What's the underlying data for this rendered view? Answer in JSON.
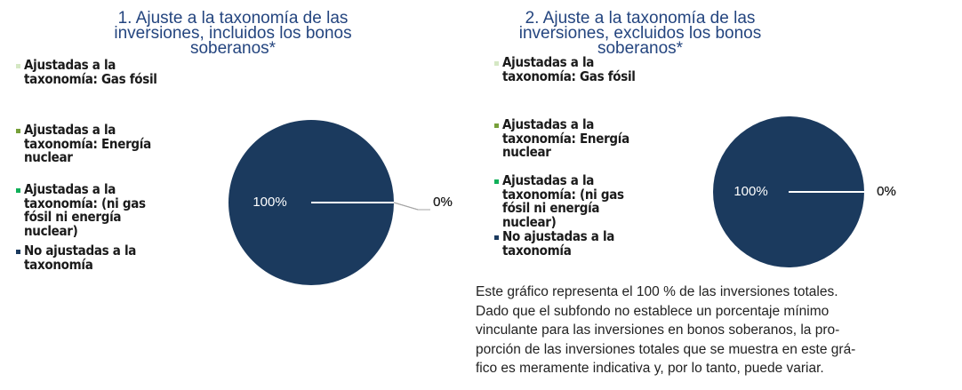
{
  "chart_data": [
    {
      "type": "pie",
      "title": "1. Ajuste a la taxonomía de las inversiones, incluidos los bonos soberanos*",
      "categories": [
        "Ajustadas a la taxonomía: Gas fósil",
        "Ajustadas a la taxonomía: Energía nuclear",
        "Ajustadas a la taxonomía: (ni gas fósil ni energía nuclear)",
        "No ajustadas a la taxonomía"
      ],
      "values": [
        0,
        0,
        0,
        100
      ],
      "value_labels": [
        "0%",
        "0%",
        "0%",
        "100%"
      ],
      "colors": [
        "#d5e8c4",
        "#77a03a",
        "#10b05a",
        "#1b3a5e"
      ],
      "leader_lines": true
    },
    {
      "type": "pie",
      "title": "2. Ajuste a la taxonomía de las inversiones, excluidos los bonos soberanos*",
      "categories": [
        "Ajustadas a la taxonomía: Gas fósil",
        "Ajustadas a la taxonomía: Energía nuclear",
        "Ajustadas a la taxonomía: (ni gas fósil ni energía nuclear)",
        "No ajustadas a la taxonomía"
      ],
      "values": [
        0,
        0,
        0,
        100
      ],
      "value_labels": [
        "0%",
        "0%",
        "0%",
        "100%"
      ],
      "colors": [
        "#d5e8c4",
        "#77a03a",
        "#10b05a",
        "#1b3a5e"
      ],
      "leader_lines": false
    }
  ],
  "footnote": [
    "Este gráfico representa el 100 % de las inversiones totales.",
    "Dado que el subfondo no establece un porcentaje mínimo",
    "vinculante para las inversiones en bonos soberanos, la pro-",
    "porción de las inversiones totales que se muestra en este grá-",
    "fico es meramente indicativa y, por lo tanto, puede variar."
  ]
}
